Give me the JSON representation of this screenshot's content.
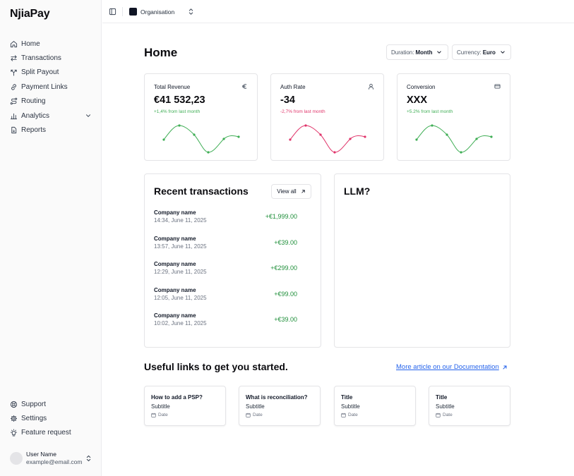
{
  "app": {
    "logo_text": "NjiaPay"
  },
  "sidebar": {
    "items": [
      {
        "label": "Home",
        "icon": "home-icon"
      },
      {
        "label": "Transactions",
        "icon": "arrows-swap-icon"
      },
      {
        "label": "Split Payout",
        "icon": "split-icon"
      },
      {
        "label": "Payment Links",
        "icon": "link-icon"
      },
      {
        "label": "Routing",
        "icon": "route-icon"
      },
      {
        "label": "Analytics",
        "icon": "bar-chart-icon"
      },
      {
        "label": "Reports",
        "icon": "file-icon"
      }
    ],
    "bottom_items": [
      {
        "label": "Support",
        "icon": "lifebuoy-icon"
      },
      {
        "label": "Settings",
        "icon": "gear-icon"
      },
      {
        "label": "Feature request",
        "icon": "lightbulb-icon"
      }
    ],
    "user": {
      "name": "User Name",
      "email": "example@email.com"
    }
  },
  "topbar": {
    "org_name": "Organisation"
  },
  "page": {
    "title": "Home",
    "duration": {
      "label": "Duration:",
      "value": "Month"
    },
    "currency": {
      "label": "Currency:",
      "value": "Euro"
    }
  },
  "kpis": [
    {
      "title": "Total Revenue",
      "icon": "euro-icon",
      "value": "€41 532,23",
      "delta": "+1,4% from last month",
      "color": "#3fae55"
    },
    {
      "title": "Auth Rate",
      "icon": "user-icon",
      "value": "-34",
      "delta": "-2,7% from last month",
      "color": "#e0346a"
    },
    {
      "title": "Conversion",
      "icon": "card-icon",
      "value": "XXX",
      "delta": "+5.2% from last month",
      "color": "#3fae55"
    }
  ],
  "recent": {
    "title": "Recent transactions",
    "view_all": "View all",
    "rows": [
      {
        "name": "Company name",
        "date": "14:34, June 11, 2025",
        "amount": "+€1,999.00"
      },
      {
        "name": "Company name",
        "date": "13:57, June 11, 2025",
        "amount": "+€39.00"
      },
      {
        "name": "Company name",
        "date": "12:29, June 11, 2025",
        "amount": "+€299.00"
      },
      {
        "name": "Company name",
        "date": "12:05, June 11, 2025",
        "amount": "+€99.00"
      },
      {
        "name": "Company name",
        "date": "10:02, June 11, 2025",
        "amount": "+€39.00"
      }
    ]
  },
  "llm": {
    "title": "LLM?"
  },
  "useful": {
    "title": "Useful links to get you started.",
    "doc_link": "More article on our Documentation",
    "cards": [
      {
        "title": "How to add a PSP?",
        "subtitle": "Subtitle",
        "date": "Date"
      },
      {
        "title": "What is reconciliation?",
        "subtitle": "Subtitle",
        "date": "Date"
      },
      {
        "title": "Title",
        "subtitle": "Subtitle",
        "date": "Date"
      },
      {
        "title": "Title",
        "subtitle": "Subtitle",
        "date": "Date"
      }
    ]
  }
}
